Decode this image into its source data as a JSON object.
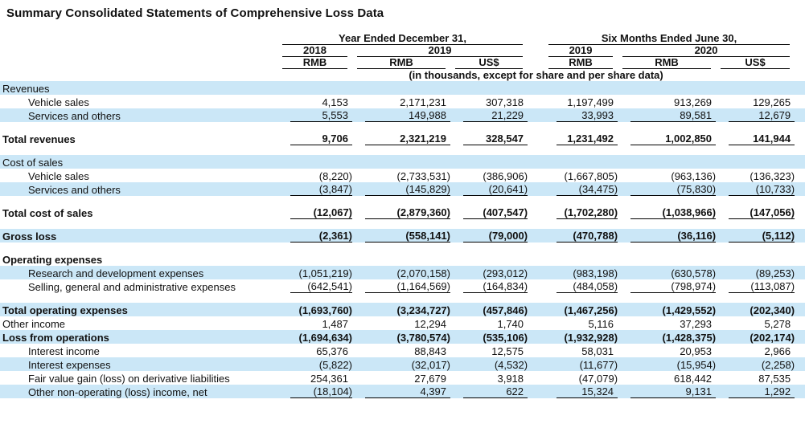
{
  "title": "Summary Consolidated Statements of Comprehensive Loss Data",
  "colors": {
    "row_shade": "#cbe7f7",
    "text": "#111111",
    "rule": "#000000"
  },
  "table": {
    "groups": [
      {
        "label": "Year Ended December 31,"
      },
      {
        "label": "Six Months Ended June 30,"
      }
    ],
    "years": [
      "2018",
      "2019",
      "2019",
      "2020"
    ],
    "currencies": [
      "RMB",
      "RMB",
      "US$",
      "RMB",
      "RMB",
      "US$"
    ],
    "units_note": "(in thousands, except for share and per share data)",
    "rows": [
      {
        "label": "Revenues",
        "type": "section",
        "shaded": true
      },
      {
        "label": "Vehicle sales",
        "indent": true,
        "values": [
          "4,153",
          "2,171,231",
          "307,318",
          "1,197,499",
          "913,269",
          "129,265"
        ]
      },
      {
        "label": "Services and others",
        "indent": true,
        "shaded": true,
        "underline": true,
        "values": [
          "5,553",
          "149,988",
          "21,229",
          "33,993",
          "89,581",
          "12,679"
        ]
      },
      {
        "type": "spacer"
      },
      {
        "label": "Total revenues",
        "bold": true,
        "underline": true,
        "values": [
          "9,706",
          "2,321,219",
          "328,547",
          "1,231,492",
          "1,002,850",
          "141,944"
        ]
      },
      {
        "type": "spacer"
      },
      {
        "label": "Cost of sales",
        "type": "section",
        "shaded": true
      },
      {
        "label": "Vehicle sales",
        "indent": true,
        "values": [
          "(8,220)",
          "(2,733,531)",
          "(386,906)",
          "(1,667,805)",
          "(963,136)",
          "(136,323)"
        ]
      },
      {
        "label": "Services and others",
        "indent": true,
        "shaded": true,
        "underline": true,
        "values": [
          "(3,847)",
          "(145,829)",
          "(20,641)",
          "(34,475)",
          "(75,830)",
          "(10,733)"
        ]
      },
      {
        "type": "spacer"
      },
      {
        "label": "Total cost of sales",
        "bold": true,
        "underline": true,
        "values": [
          "(12,067)",
          "(2,879,360)",
          "(407,547)",
          "(1,702,280)",
          "(1,038,966)",
          "(147,056)"
        ]
      },
      {
        "type": "spacer"
      },
      {
        "label": "Gross loss",
        "bold": true,
        "shaded": true,
        "underline": true,
        "values": [
          "(2,361)",
          "(558,141)",
          "(79,000)",
          "(470,788)",
          "(36,116)",
          "(5,112)"
        ]
      },
      {
        "type": "spacer"
      },
      {
        "label": "Operating expenses",
        "type": "section",
        "bold": true
      },
      {
        "label": "Research and development expenses",
        "indent": true,
        "shaded": true,
        "values": [
          "(1,051,219)",
          "(2,070,158)",
          "(293,012)",
          "(983,198)",
          "(630,578)",
          "(89,253)"
        ]
      },
      {
        "label": "Selling, general and administrative expenses",
        "indent": true,
        "underline": true,
        "values": [
          "(642,541)",
          "(1,164,569)",
          "(164,834)",
          "(484,058)",
          "(798,974)",
          "(113,087)"
        ]
      },
      {
        "type": "spacer"
      },
      {
        "label": "Total operating expenses",
        "bold": true,
        "shaded": true,
        "values": [
          "(1,693,760)",
          "(3,234,727)",
          "(457,846)",
          "(1,467,256)",
          "(1,429,552)",
          "(202,340)"
        ]
      },
      {
        "label": "Other income",
        "values": [
          "1,487",
          "12,294",
          "1,740",
          "5,116",
          "37,293",
          "5,278"
        ]
      },
      {
        "label": "Loss from operations",
        "bold": true,
        "shaded": true,
        "values": [
          "(1,694,634)",
          "(3,780,574)",
          "(535,106)",
          "(1,932,928)",
          "(1,428,375)",
          "(202,174)"
        ]
      },
      {
        "label": "Interest income",
        "indent": true,
        "values": [
          "65,376",
          "88,843",
          "12,575",
          "58,031",
          "20,953",
          "2,966"
        ]
      },
      {
        "label": "Interest expenses",
        "indent": true,
        "shaded": true,
        "values": [
          "(5,822)",
          "(32,017)",
          "(4,532)",
          "(11,677)",
          "(15,954)",
          "(2,258)"
        ]
      },
      {
        "label": "Fair value gain (loss) on derivative liabilities",
        "indent": true,
        "values": [
          "254,361",
          "27,679",
          "3,918",
          "(47,079)",
          "618,442",
          "87,535"
        ]
      },
      {
        "label": "Other non-operating (loss) income, net",
        "indent": true,
        "shaded": true,
        "underline": true,
        "values": [
          "(18,104)",
          "4,397",
          "622",
          "15,324",
          "9,131",
          "1,292"
        ]
      }
    ]
  }
}
